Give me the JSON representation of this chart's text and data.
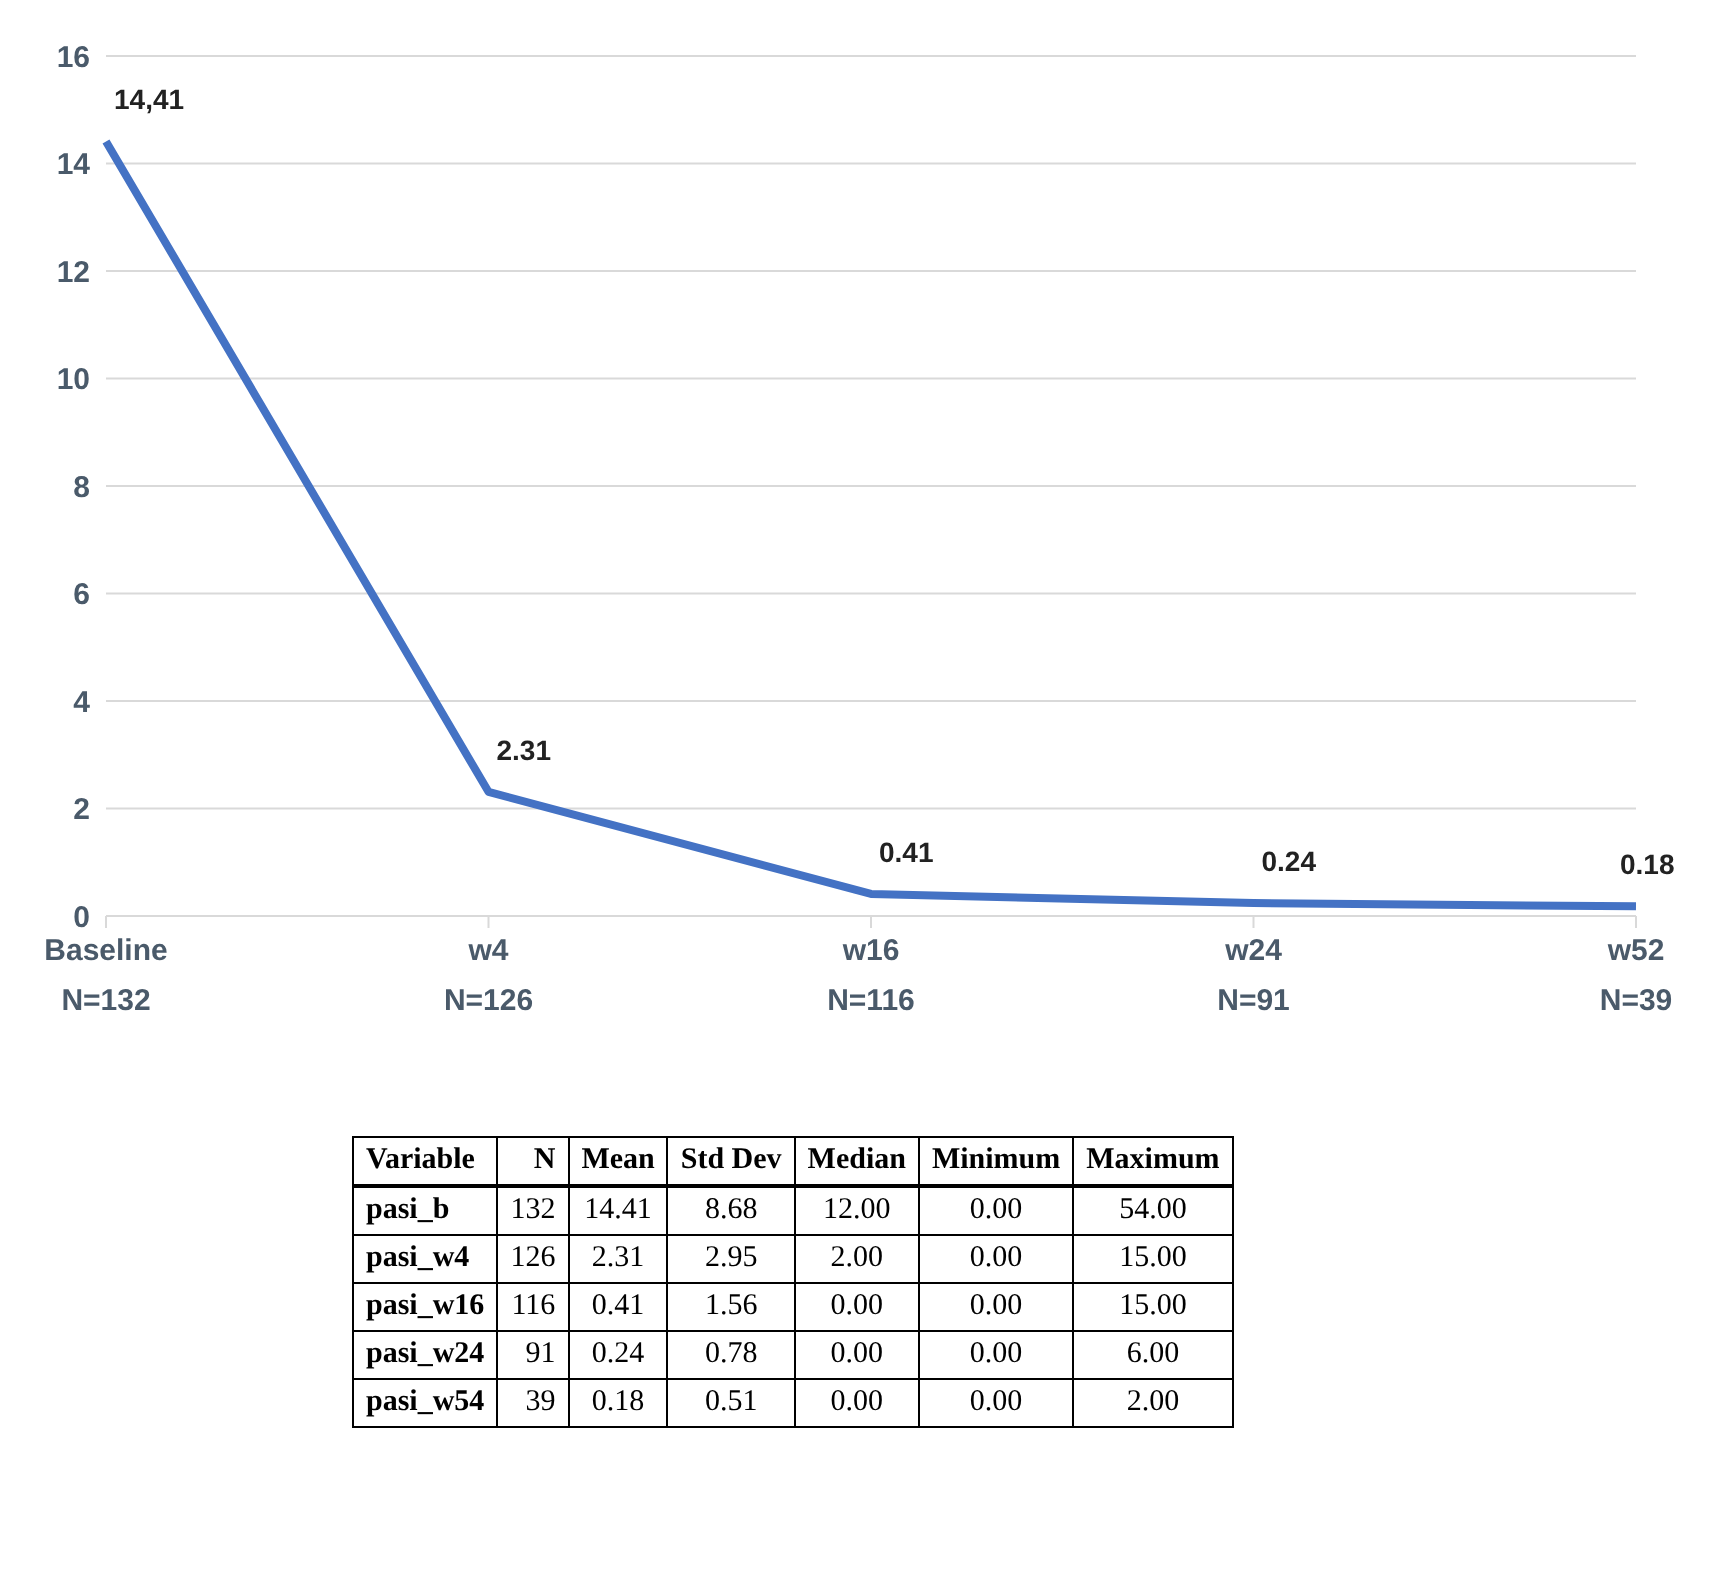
{
  "chart_data": {
    "type": "line",
    "categories": [
      "Baseline\nN=132",
      "w4\nN=126",
      "w16\nN=116",
      "w24\nN=91",
      "w52\nN=39"
    ],
    "series": [
      {
        "color": "#4472c4",
        "values": [
          14.41,
          2.31,
          0.41,
          0.24,
          0.18
        ],
        "value_labels": [
          "14,41",
          "2.31",
          "0.41",
          "0.24",
          "0.18"
        ]
      }
    ],
    "ylim": [
      0,
      16
    ],
    "yticks": [
      0,
      2,
      4,
      6,
      8,
      10,
      12,
      14,
      16
    ],
    "grid": "y",
    "marker": "none",
    "line_style": "solid",
    "annotations": [
      "Variable",
      "N",
      "Mean",
      "Std Dev",
      "Median",
      "Minimum",
      "Maximum",
      "pasi_b",
      "132",
      "14.41",
      "8.68",
      "12.00",
      "0.00",
      "54.00",
      "pasi_w4",
      "126",
      "2.31",
      "2.95",
      "2.00",
      "0.00",
      "15.00",
      "pasi_w16",
      "116",
      "0.41",
      "1.56",
      "0.00",
      "0.00",
      "15.00",
      "pasi_w24",
      "91",
      "0.24",
      "0.78",
      "0.00",
      "0.00",
      "6.00",
      "pasi_w54",
      "39",
      "0.18",
      "0.51",
      "0.00",
      "0.00",
      "2.00"
    ]
  }
}
